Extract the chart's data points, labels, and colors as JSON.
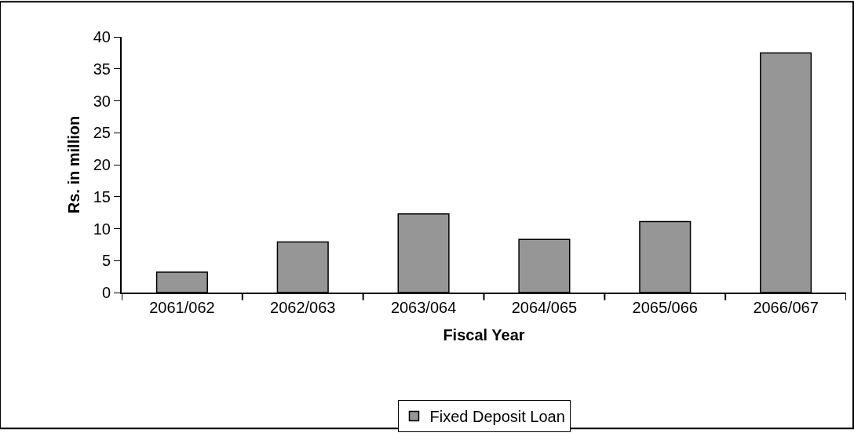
{
  "chart_data": {
    "type": "bar",
    "xlabel": "Fiscal Year",
    "ylabel": "Rs. in million",
    "categories": [
      "2061/062",
      "2062/063",
      "2063/064",
      "2064/065",
      "2065/066",
      "2066/067"
    ],
    "series": [
      {
        "name": "Fixed Deposit Loan",
        "color": "#969696",
        "values": [
          3.2,
          7.9,
          12.3,
          8.3,
          11.1,
          37.5
        ]
      }
    ],
    "ylim": [
      0,
      40
    ],
    "yticks": [
      0,
      5,
      10,
      15,
      20,
      25,
      30,
      35,
      40
    ],
    "grid": false,
    "legend": "bottom"
  }
}
